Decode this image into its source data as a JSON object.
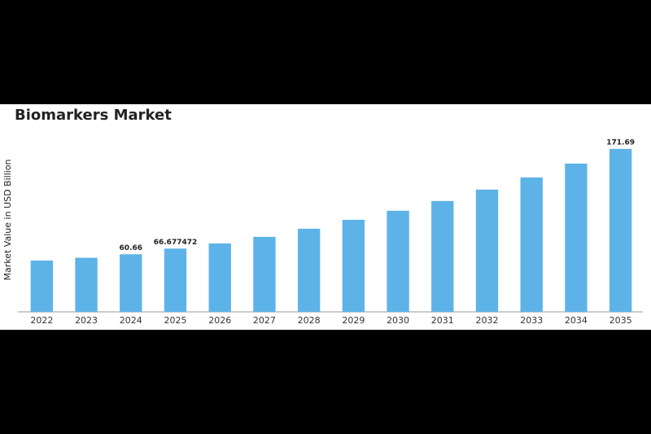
{
  "chart_data": {
    "type": "bar",
    "title": "Biomarkers Market",
    "y_label": "Market Value in USD Billion",
    "categories": [
      "2022",
      "2023",
      "2024",
      "2025",
      "2026",
      "2027",
      "2028",
      "2029",
      "2030",
      "2031",
      "2032",
      "2033",
      "2034",
      "2035"
    ],
    "values": [
      54.1,
      57.0,
      60.66,
      66.677472,
      72.1,
      79.0,
      87.6,
      97.0,
      106.5,
      116.8,
      128.8,
      141.6,
      156.2,
      171.69
    ],
    "value_labels": [
      null,
      null,
      "60.66",
      "66.677472",
      null,
      null,
      null,
      null,
      null,
      null,
      null,
      null,
      null,
      "171.69"
    ],
    "color": "#5db3e8",
    "ylim": [
      0,
      175
    ]
  }
}
